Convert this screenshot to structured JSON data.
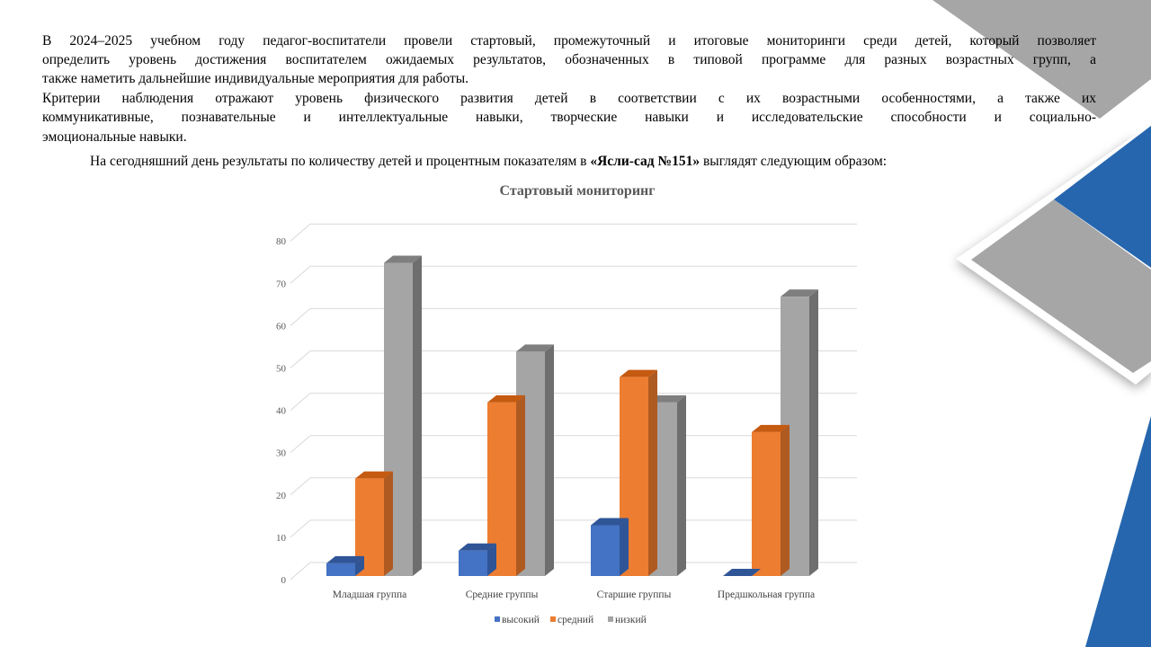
{
  "slide": {
    "lines": [
      "В 2024–2025 учебном году педагог-воспитатели провели стартовый, промежуточный и итоговые мониторинги среди детей, который позволяет",
      "определить уровень достижения воспитателем ожидаемых результатов, обозначенных в типовой программе для разных возрастных групп, а",
      "также наметить дальнейшие индивидуальные мероприятия для работы.",
      "Критерии наблюдения отражают уровень физического развития детей в соответствии с их возрастными особенностями, а также их",
      "коммуникативные, познавательные и интеллектуальные навыки, творческие навыки и исследовательские способности и социально-",
      "эмоциональные навыки."
    ],
    "summary_before": "На сегодняшний день результаты по количеству детей и процентным показателям в ",
    "summary_bold": "«Ясли-сад №151»",
    "summary_after": " выглядят следующим образом:"
  },
  "colors": {
    "blue": "#4472C4",
    "orange": "#ED7D31",
    "gray": "#A5A5A5",
    "deco_blue": "#2566AE",
    "deco_gray": "#A6A6A6"
  },
  "chart_data": {
    "type": "bar",
    "title": "Стартовый мониторинг",
    "categories": [
      "Младшая группа",
      "Средние группы",
      "Старшие группы",
      "Предшкольная группа"
    ],
    "series": [
      {
        "name": "высокий",
        "values": [
          3,
          6,
          12,
          0
        ]
      },
      {
        "name": "средний",
        "values": [
          23,
          41,
          47,
          34
        ]
      },
      {
        "name": "низкий",
        "values": [
          74,
          53,
          41,
          66
        ]
      }
    ],
    "yticks": [
      "0",
      "10",
      "20",
      "30",
      "40",
      "50",
      "60",
      "70",
      "80"
    ],
    "ylim": [
      0,
      80
    ],
    "grid": true,
    "legend": "bottom"
  }
}
